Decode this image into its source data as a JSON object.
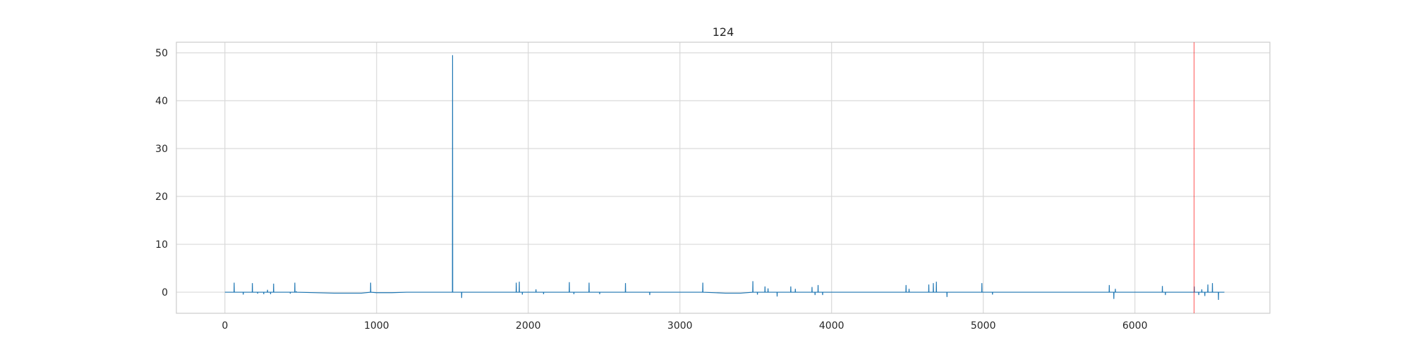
{
  "chart_data": {
    "type": "line",
    "title": "124",
    "xlabel": "",
    "ylabel": "",
    "xlim": [
      -320,
      6890
    ],
    "ylim": [
      -4.4,
      52.2
    ],
    "xticks": [
      0,
      1000,
      2000,
      3000,
      4000,
      5000,
      6000
    ],
    "yticks": [
      0,
      10,
      20,
      30,
      40,
      50
    ],
    "grid": true,
    "series": [
      {
        "color": "#1f77b4",
        "x": [
          0,
          60,
          61,
          62,
          120,
          121,
          122,
          180,
          181,
          182,
          215,
          216,
          217,
          255,
          256,
          257,
          280,
          281,
          282,
          300,
          301,
          302,
          320,
          321,
          322,
          430,
          431,
          432,
          460,
          461,
          462,
          470,
          471,
          472,
          720,
          800,
          900,
          960,
          961,
          962,
          1000,
          1100,
          1200,
          1300,
          1400,
          1500,
          1501,
          1502,
          1560,
          1561,
          1562,
          1700,
          1800,
          1900,
          1920,
          1921,
          1922,
          1940,
          1941,
          1942,
          1960,
          1961,
          1962,
          2050,
          2051,
          2052,
          2100,
          2101,
          2102,
          2270,
          2271,
          2272,
          2300,
          2301,
          2302,
          2400,
          2401,
          2402,
          2470,
          2471,
          2472,
          2640,
          2641,
          2642,
          2800,
          2801,
          2802,
          3000,
          3150,
          3151,
          3152,
          3300,
          3400,
          3480,
          3481,
          3482,
          3510,
          3511,
          3512,
          3560,
          3561,
          3562,
          3580,
          3581,
          3582,
          3640,
          3641,
          3642,
          3700,
          3730,
          3731,
          3732,
          3760,
          3761,
          3762,
          3800,
          3870,
          3871,
          3872,
          3890,
          3891,
          3892,
          3910,
          3911,
          3912,
          3940,
          3941,
          3942,
          4000,
          4200,
          4400,
          4490,
          4491,
          4492,
          4510,
          4511,
          4512,
          4600,
          4640,
          4641,
          4642,
          4670,
          4671,
          4672,
          4690,
          4691,
          4692,
          4760,
          4761,
          4762,
          4800,
          4900,
          4990,
          4991,
          4992,
          5060,
          5061,
          5062,
          5200,
          5400,
          5600,
          5800,
          5830,
          5831,
          5832,
          5860,
          5861,
          5862,
          5870,
          5871,
          5872,
          5900,
          6000,
          6100,
          6180,
          6181,
          6182,
          6200,
          6201,
          6202,
          6300,
          6390,
          6391,
          6392,
          6420,
          6421,
          6422,
          6440,
          6441,
          6442,
          6460,
          6461,
          6462,
          6480,
          6481,
          6482,
          6510,
          6511,
          6512,
          6550,
          6551,
          6552,
          6590
        ],
        "y": [
          0,
          0,
          2.0,
          0,
          0,
          -0.5,
          0,
          0,
          1.9,
          0,
          0,
          -0.3,
          0,
          0,
          -0.4,
          0,
          0,
          0.5,
          0,
          0,
          -0.4,
          0,
          0,
          1.8,
          0,
          0,
          -0.3,
          0,
          0,
          2.0,
          0,
          0,
          0.2,
          0,
          -0.2,
          -0.2,
          -0.2,
          0,
          2.0,
          0,
          -0.1,
          -0.1,
          0,
          0,
          0,
          0,
          49.5,
          0,
          0,
          -1.2,
          0,
          0,
          0,
          0,
          0,
          2.0,
          0,
          0,
          2.2,
          0,
          0,
          -0.5,
          0,
          0,
          0.6,
          0,
          0,
          -0.4,
          0,
          0,
          2.1,
          0,
          0,
          -0.4,
          0,
          0,
          2.0,
          0,
          0,
          -0.4,
          0,
          0,
          1.9,
          0,
          0,
          -0.6,
          0,
          0,
          0,
          2.0,
          0,
          -0.2,
          -0.2,
          0,
          2.3,
          0,
          0,
          -0.5,
          0,
          0,
          1.2,
          0,
          0,
          0.8,
          0,
          0,
          -0.9,
          0,
          0,
          0,
          1.2,
          0,
          0,
          0.7,
          0,
          0,
          0,
          1.1,
          0,
          0,
          -0.6,
          0,
          0,
          1.5,
          0,
          0,
          -0.6,
          0,
          0,
          0,
          0,
          0,
          1.5,
          0,
          0,
          0.7,
          0,
          0,
          0,
          1.6,
          0,
          0,
          1.9,
          0,
          0,
          2.2,
          0,
          0,
          -1.0,
          0,
          0,
          0,
          0,
          1.9,
          0,
          0,
          -0.5,
          0,
          0,
          0,
          0,
          0,
          0,
          1.5,
          0,
          0,
          -1.4,
          0,
          0,
          0.7,
          0,
          0,
          0,
          0,
          0,
          1.3,
          0,
          0,
          -0.6,
          0,
          0,
          0,
          1.2,
          0,
          0,
          -0.6,
          0,
          0,
          0.6,
          0,
          0,
          -0.8,
          0,
          0,
          1.6,
          0,
          0,
          1.9,
          0,
          0,
          -1.6,
          0,
          0
        ]
      }
    ],
    "vertical_line": {
      "x": 6390,
      "color": "#ff0000"
    }
  }
}
